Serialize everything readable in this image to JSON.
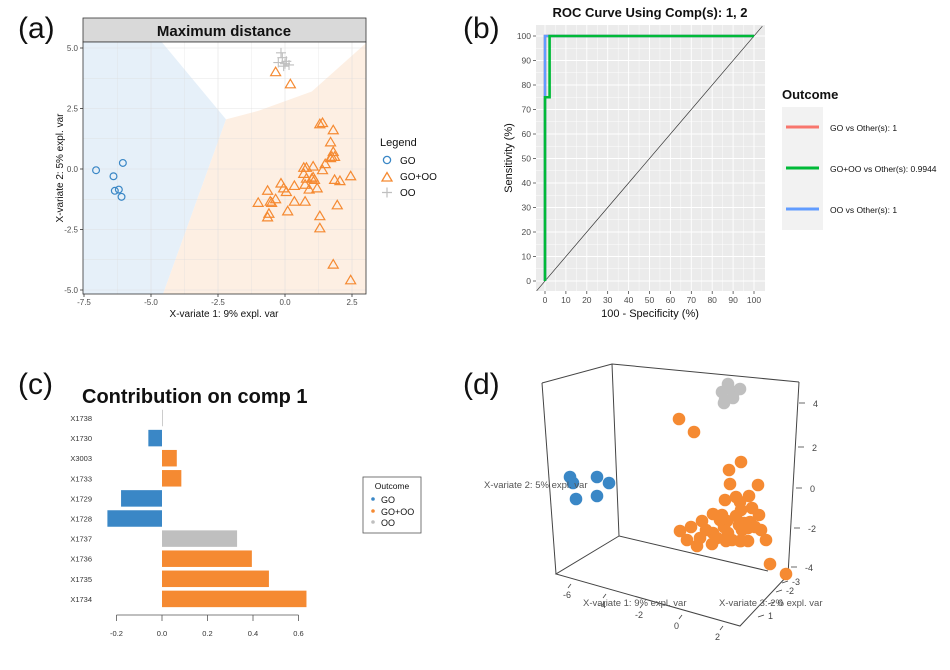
{
  "panels": {
    "a": "(a)",
    "b": "(b)",
    "c": "(c)",
    "d": "(d)"
  },
  "colors": {
    "GO": "#3a87c6",
    "GO+OO": "#f58a32",
    "OO": "#bfbfbf",
    "go_region": "#e6f0f9",
    "gooo_region": "#fdefe3",
    "roc_red": "#f8766d",
    "roc_green": "#00ba38",
    "roc_blue": "#619cff"
  },
  "chart_data": [
    {
      "id": "a",
      "type": "scatter",
      "title": "Maximum distance",
      "xlabel": "X-variate 1: 9% expl. var",
      "ylabel": "X-variate 2: 5% expl. var",
      "xlim": [
        -7.5,
        2.9
      ],
      "ylim": [
        -5.1,
        5.2
      ],
      "xticks": [
        -7.5,
        -5.0,
        -2.5,
        0.0,
        2.5
      ],
      "xtick_labels": [
        "-7.5",
        "-5.0",
        "-2.5",
        "0.0",
        "2.5"
      ],
      "yticks": [
        5.0,
        2.5,
        0.0,
        -2.5,
        -5.0
      ],
      "ytick_labels": [
        "5.0",
        "2.5",
        "0.0",
        "-2.5",
        "-5.0"
      ],
      "grid": true,
      "legend": {
        "title": "Legend",
        "position": "right",
        "entries": [
          {
            "label": "GO",
            "shape": "circle"
          },
          {
            "label": "GO+OO",
            "shape": "triangle"
          },
          {
            "label": "OO",
            "shape": "plus"
          }
        ]
      },
      "series": [
        {
          "name": "GO",
          "shape": "circle",
          "points": [
            [
              -7.05,
              -0.05
            ],
            [
              -6.4,
              -0.3
            ],
            [
              -6.05,
              0.25
            ],
            [
              -6.35,
              -0.9
            ],
            [
              -6.2,
              -0.85
            ],
            [
              -6.1,
              -1.15
            ]
          ]
        },
        {
          "name": "GO+OO",
          "shape": "triangle",
          "points": [
            [
              -0.35,
              4.0
            ],
            [
              0.2,
              3.5
            ],
            [
              1.3,
              1.85
            ],
            [
              1.4,
              1.9
            ],
            [
              1.8,
              1.6
            ],
            [
              1.7,
              1.1
            ],
            [
              1.8,
              0.7
            ],
            [
              1.75,
              0.5
            ],
            [
              1.85,
              0.5
            ],
            [
              1.7,
              0.45
            ],
            [
              1.5,
              0.2
            ],
            [
              0.7,
              0.05
            ],
            [
              0.8,
              0.05
            ],
            [
              1.05,
              0.1
            ],
            [
              1.4,
              -0.05
            ],
            [
              0.7,
              -0.2
            ],
            [
              0.8,
              -0.4
            ],
            [
              1.0,
              -0.4
            ],
            [
              1.05,
              -0.35
            ],
            [
              1.1,
              -0.45
            ],
            [
              0.75,
              -0.65
            ],
            [
              1.2,
              -0.8
            ],
            [
              0.9,
              -0.85
            ],
            [
              1.85,
              -0.45
            ],
            [
              2.05,
              -0.5
            ],
            [
              2.45,
              -0.3
            ],
            [
              -0.15,
              -0.6
            ],
            [
              -0.05,
              -0.8
            ],
            [
              0.05,
              -0.95
            ],
            [
              0.35,
              -0.7
            ],
            [
              -0.65,
              -0.9
            ],
            [
              -0.35,
              -1.25
            ],
            [
              -0.5,
              -1.4
            ],
            [
              -0.55,
              -1.35
            ],
            [
              -1.0,
              -1.4
            ],
            [
              0.35,
              -1.35
            ],
            [
              0.75,
              -1.35
            ],
            [
              1.95,
              -1.5
            ],
            [
              -0.6,
              -1.85
            ],
            [
              -0.65,
              -2.0
            ],
            [
              0.1,
              -1.75
            ],
            [
              1.3,
              -1.95
            ],
            [
              1.3,
              -2.45
            ],
            [
              1.8,
              -3.95
            ],
            [
              2.45,
              -4.6
            ]
          ]
        },
        {
          "name": "OO",
          "shape": "plus",
          "points": [
            [
              -0.15,
              4.8
            ],
            [
              -0.1,
              4.6
            ],
            [
              -0.25,
              4.4
            ],
            [
              0.0,
              4.35
            ],
            [
              0.15,
              4.3
            ],
            [
              0.05,
              4.45
            ],
            [
              -0.05,
              4.25
            ]
          ]
        }
      ]
    },
    {
      "id": "b",
      "type": "line",
      "title": "ROC Curve Using Comp(s): 1, 2",
      "xlabel": "100 - Specificity (%)",
      "ylabel": "Sensitivity (%)",
      "xlim": [
        -4,
        104
      ],
      "ylim": [
        -4,
        104
      ],
      "xticks": [
        0,
        10,
        20,
        30,
        40,
        50,
        60,
        70,
        80,
        90,
        100
      ],
      "yticks": [
        0,
        10,
        20,
        30,
        40,
        50,
        60,
        70,
        80,
        90,
        100
      ],
      "grid": true,
      "legend": {
        "title": "Outcome",
        "position": "right",
        "entries": [
          {
            "label": "GO vs Other(s): 1",
            "color": "roc_red"
          },
          {
            "label": "GO+OO vs Other(s): 0.9944",
            "color": "roc_green"
          },
          {
            "label": "OO vs Other(s): 1",
            "color": "roc_blue"
          }
        ]
      },
      "series": [
        {
          "name": "GO vs Other(s)",
          "auc": 1,
          "x": [
            0,
            0,
            100
          ],
          "y": [
            0,
            100,
            100
          ]
        },
        {
          "name": "GO+OO vs Other(s)",
          "auc": 0.9944,
          "x": [
            0,
            0,
            2.2,
            2.2,
            100
          ],
          "y": [
            0,
            75,
            75,
            100,
            100
          ]
        },
        {
          "name": "OO vs Other(s)",
          "auc": 1,
          "x": [
            0,
            0,
            100
          ],
          "y": [
            0,
            100,
            100
          ]
        },
        {
          "name": "reference",
          "x": [
            -4,
            104
          ],
          "y": [
            -4,
            104
          ]
        }
      ]
    },
    {
      "id": "c",
      "type": "bar",
      "orientation": "horizontal",
      "title": "Contribution on comp 1",
      "xlim": [
        -0.2,
        0.6
      ],
      "xticks": [
        -0.2,
        0.0,
        0.2,
        0.4,
        0.6
      ],
      "xtick_labels": [
        "-0.2",
        "0.0",
        "0.2",
        "0.4",
        "0.6"
      ],
      "categories": [
        "X1738",
        "X1730",
        "X3003",
        "X1733",
        "X1729",
        "X1728",
        "X1737",
        "X1736",
        "X1735",
        "X1734"
      ],
      "values": [
        0.003,
        -0.06,
        0.065,
        0.085,
        -0.18,
        -0.24,
        0.33,
        0.395,
        0.47,
        0.635
      ],
      "groups": [
        "OO",
        "GO",
        "GO+OO",
        "GO+OO",
        "GO",
        "GO",
        "OO",
        "GO+OO",
        "GO+OO",
        "GO+OO"
      ],
      "legend": {
        "title": "Outcome",
        "position": "right",
        "entries": [
          "GO",
          "GO+OO",
          "OO"
        ]
      }
    },
    {
      "id": "d",
      "type": "scatter",
      "projection": "3d",
      "xlabel": "X-variate 1: 9% expl. var",
      "ylabel": "X-variate 2: 5% expl. var",
      "zlabel": "X-variate 3: 2% expl. var",
      "xticks": [
        "-6",
        "-4",
        "-2",
        "0",
        "2"
      ],
      "yticks": [
        "4",
        "2",
        "0",
        "-2",
        "-4"
      ],
      "zticks": [
        "-3",
        "-2",
        "0",
        "1"
      ],
      "series": [
        {
          "name": "GO",
          "count": 6
        },
        {
          "name": "GO+OO",
          "count": 45
        },
        {
          "name": "OO",
          "count": 7
        }
      ]
    }
  ]
}
